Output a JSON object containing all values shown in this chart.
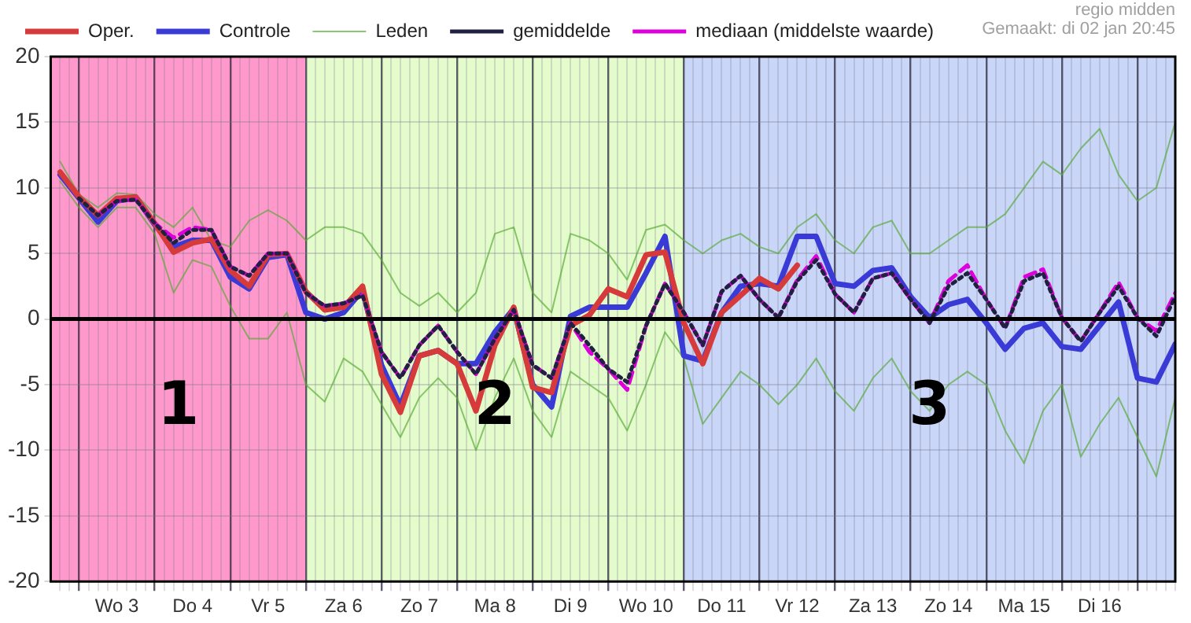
{
  "chart_data": {
    "type": "line",
    "annotations": [
      "regio midden",
      "Gemaakt: di 02 jan 20:45"
    ],
    "x": [
      "--01-02T18:00",
      "--01-03T00:00",
      "--01-03T06:00",
      "--01-03T12:00",
      "--01-03T18:00",
      "--01-04T00:00",
      "--01-04T06:00",
      "--01-04T12:00",
      "--01-04T18:00",
      "--01-05T00:00",
      "--01-05T06:00",
      "--01-05T12:00",
      "--01-05T18:00",
      "--01-06T00:00",
      "--01-06T06:00",
      "--01-06T12:00",
      "--01-06T18:00",
      "--01-07T00:00",
      "--01-07T06:00",
      "--01-07T12:00",
      "--01-07T18:00",
      "--01-08T00:00",
      "--01-08T06:00",
      "--01-08T12:00",
      "--01-08T18:00",
      "--01-09T00:00",
      "--01-09T06:00",
      "--01-09T12:00",
      "--01-09T18:00",
      "--01-10T00:00",
      "--01-10T06:00",
      "--01-10T12:00",
      "--01-10T18:00",
      "--01-11T00:00",
      "--01-11T06:00",
      "--01-11T12:00",
      "--01-11T18:00",
      "--01-12T00:00",
      "--01-12T06:00",
      "--01-12T12:00",
      "--01-12T18:00",
      "--01-13T00:00",
      "--01-13T06:00",
      "--01-13T12:00",
      "--01-13T18:00",
      "--01-14T00:00",
      "--01-14T06:00",
      "--01-14T12:00",
      "--01-14T18:00",
      "--01-15T00:00",
      "--01-15T06:00",
      "--01-15T12:00",
      "--01-15T18:00",
      "--01-16T00:00",
      "--01-16T06:00",
      "--01-16T12:00",
      "--01-16T18:00",
      "--01-17T00:00",
      "--01-17T06:00",
      "--01-17T12:00"
    ],
    "series": [
      {
        "name": "Oper.",
        "color": "#d63a3a",
        "line_style": "solid",
        "values": [
          11.2,
          9.3,
          7.9,
          9.2,
          9.3,
          7.3,
          5.1,
          5.8,
          6.1,
          3.7,
          2.5,
          4.9,
          5.0,
          2.1,
          0.7,
          0.9,
          2.5,
          -4.2,
          -7.1,
          -2.8,
          -2.4,
          -3.4,
          -7.0,
          -2.0,
          0.9,
          -5.2,
          -5.6,
          -0.5,
          0.3,
          2.3,
          1.7,
          4.9,
          5.1,
          -0.3,
          -3.4,
          0.5,
          1.8,
          3.1,
          2.3,
          4.1,
          null,
          null,
          null,
          null,
          null,
          null,
          null,
          null,
          null,
          null,
          null,
          null,
          null,
          null,
          null,
          null,
          null,
          null,
          null,
          null
        ]
      },
      {
        "name": "Controle",
        "color": "#3a3ad6",
        "line_style": "solid",
        "values": [
          11.0,
          9.2,
          7.4,
          9.0,
          9.3,
          7.2,
          5.5,
          6.0,
          6.0,
          3.2,
          2.3,
          4.7,
          4.9,
          0.5,
          0.0,
          0.5,
          2.2,
          -3.5,
          -6.6,
          -2.8,
          -2.4,
          -3.4,
          -3.4,
          -1.0,
          0.8,
          -5.0,
          -6.7,
          0.2,
          0.9,
          0.9,
          0.9,
          3.5,
          6.3,
          -2.8,
          -3.2,
          0.5,
          2.5,
          2.7,
          2.5,
          6.3,
          6.3,
          2.7,
          2.5,
          3.7,
          3.9,
          1.7,
          0.1,
          1.1,
          1.5,
          -0.3,
          -2.3,
          -0.7,
          -0.3,
          -2.1,
          -2.3,
          -0.5,
          1.3,
          -4.5,
          -4.8,
          -1.9
        ]
      },
      {
        "name": "Leden",
        "color": "#55aa33",
        "line_style": "solid",
        "values": [
          12,
          9.5,
          8.5,
          9.6,
          9.5,
          8,
          7,
          8.5,
          6,
          5.5,
          7.5,
          8.3,
          7.5,
          6,
          7,
          7,
          6.5,
          4.5,
          2,
          1,
          2,
          0.5,
          2,
          6.5,
          7,
          2,
          0.5,
          6.5,
          6,
          5,
          3,
          6.8,
          7.2,
          6,
          5,
          6,
          6.5,
          5.5,
          5,
          7,
          8,
          6,
          5,
          7,
          7.5,
          5,
          5,
          6,
          7,
          7,
          8,
          10,
          12,
          11,
          13,
          14.5,
          11,
          9,
          10,
          15
        ]
      },
      {
        "color": "#55aa33",
        "line_style": "solid",
        "values": [
          10.5,
          8.5,
          7,
          8.5,
          8.5,
          6.5,
          2,
          4.5,
          4,
          1,
          -1.5,
          -1.5,
          0.5,
          -5,
          -6.3,
          -3,
          -4,
          -6.5,
          -9,
          -6,
          -4.5,
          -6,
          -10,
          -6,
          -3,
          -7,
          -9,
          -4,
          -5,
          -6,
          -8.5,
          -5,
          -1,
          -3,
          -8,
          -6,
          -4,
          -5,
          -6.5,
          -5,
          -3,
          -5.5,
          -7,
          -4.5,
          -3,
          -5.5,
          -7,
          -5,
          -4,
          -5,
          -8.5,
          -11,
          -7,
          -5,
          -10.5,
          -8,
          -6,
          -9,
          -12,
          -6
        ]
      },
      {
        "name": "gemiddelde",
        "color": "#202040",
        "line_style": "dotted",
        "values": [
          null,
          9.2,
          7.9,
          9.0,
          9.1,
          7.3,
          5.8,
          6.8,
          6.8,
          4.0,
          3.3,
          5.0,
          5.0,
          2.0,
          1.0,
          1.2,
          1.8,
          -2.5,
          -4.5,
          -2.0,
          -0.5,
          -2.5,
          -4.2,
          -1.5,
          0.7,
          -3.5,
          -4.5,
          -0.3,
          -2.0,
          -3.8,
          -4.8,
          -0.5,
          2.7,
          0.5,
          -2.0,
          2.1,
          3.3,
          1.5,
          0.1,
          2.9,
          4.5,
          1.9,
          0.5,
          3.1,
          3.5,
          1.5,
          -0.3,
          2.5,
          3.5,
          1.5,
          -0.7,
          2.9,
          3.5,
          0.1,
          -1.7,
          0.5,
          2.5,
          0.1,
          -1.3,
          1.7
        ]
      },
      {
        "name": "mediaan (middelste waarde)",
        "color": "#dd00dd",
        "line_style": "dashed",
        "values": [
          null,
          null,
          7.9,
          9.0,
          9.1,
          7.3,
          6.2,
          7.0,
          6.8,
          4.0,
          3.3,
          5.0,
          5.0,
          2.0,
          1.0,
          1.2,
          1.8,
          -2.5,
          -4.5,
          -2.0,
          -0.5,
          -2.5,
          -4.2,
          -1.5,
          0.7,
          -3.5,
          -4.5,
          -0.3,
          -2.5,
          -3.8,
          -5.4,
          -0.5,
          2.7,
          0.5,
          -2.0,
          2.1,
          3.3,
          1.5,
          0.1,
          3.0,
          4.8,
          1.9,
          0.5,
          3.1,
          3.5,
          1.5,
          -0.3,
          2.9,
          4.1,
          1.5,
          -0.7,
          3.2,
          3.8,
          0.1,
          -1.7,
          0.5,
          2.8,
          0.1,
          -0.9,
          2.0
        ]
      }
    ],
    "xlim": [
      "--01-02T15:00",
      "--01-17T12:00"
    ],
    "xticks": [
      {
        "value": "--01-02T18:00",
        "label": null
      },
      {
        "value": "--01-02T21:00",
        "label": null
      },
      {
        "value": "--01-03T00:00",
        "label": null
      },
      {
        "value": "--01-03T03:00",
        "label": null
      },
      {
        "value": "--01-03T06:00",
        "label": null
      },
      {
        "value": "--01-03T09:00",
        "label": null
      },
      {
        "value": "--01-03T12:00",
        "label": "Wo 3"
      },
      {
        "value": "--01-03T15:00",
        "label": null
      },
      {
        "value": "--01-03T18:00",
        "label": null
      },
      {
        "value": "--01-03T21:00",
        "label": null
      },
      {
        "value": "--01-04T00:00",
        "label": null
      },
      {
        "value": "--01-04T03:00",
        "label": null
      },
      {
        "value": "--01-04T06:00",
        "label": null
      },
      {
        "value": "--01-04T09:00",
        "label": null
      },
      {
        "value": "--01-04T12:00",
        "label": "Do 4"
      },
      {
        "value": "--01-04T15:00",
        "label": null
      },
      {
        "value": "--01-04T18:00",
        "label": null
      },
      {
        "value": "--01-04T21:00",
        "label": null
      },
      {
        "value": "--01-05T00:00",
        "label": null
      },
      {
        "value": "--01-05T03:00",
        "label": null
      },
      {
        "value": "--01-05T06:00",
        "label": null
      },
      {
        "value": "--01-05T09:00",
        "label": null
      },
      {
        "value": "--01-05T12:00",
        "label": "Vr 5"
      },
      {
        "value": "--01-05T15:00",
        "label": null
      },
      {
        "value": "--01-05T18:00",
        "label": null
      },
      {
        "value": "--01-05T21:00",
        "label": null
      },
      {
        "value": "--01-06T00:00",
        "label": null
      },
      {
        "value": "--01-06T03:00",
        "label": null
      },
      {
        "value": "--01-06T06:00",
        "label": null
      },
      {
        "value": "--01-06T09:00",
        "label": null
      },
      {
        "value": "--01-06T12:00",
        "label": "Za 6"
      },
      {
        "value": "--01-06T15:00",
        "label": null
      },
      {
        "value": "--01-06T18:00",
        "label": null
      },
      {
        "value": "--01-06T21:00",
        "label": null
      },
      {
        "value": "--01-07T00:00",
        "label": null
      },
      {
        "value": "--01-07T03:00",
        "label": null
      },
      {
        "value": "--01-07T06:00",
        "label": null
      },
      {
        "value": "--01-07T09:00",
        "label": null
      },
      {
        "value": "--01-07T12:00",
        "label": "Zo 7"
      },
      {
        "value": "--01-07T15:00",
        "label": null
      },
      {
        "value": "--01-07T18:00",
        "label": null
      },
      {
        "value": "--01-07T21:00",
        "label": null
      },
      {
        "value": "--01-08T00:00",
        "label": null
      },
      {
        "value": "--01-08T03:00",
        "label": null
      },
      {
        "value": "--01-08T06:00",
        "label": null
      },
      {
        "value": "--01-08T09:00",
        "label": null
      },
      {
        "value": "--01-08T12:00",
        "label": "Ma 8"
      },
      {
        "value": "--01-08T15:00",
        "label": null
      },
      {
        "value": "--01-08T18:00",
        "label": null
      },
      {
        "value": "--01-08T21:00",
        "label": null
      },
      {
        "value": "--01-09T00:00",
        "label": null
      },
      {
        "value": "--01-09T03:00",
        "label": null
      },
      {
        "value": "--01-09T06:00",
        "label": null
      },
      {
        "value": "--01-09T09:00",
        "label": null
      },
      {
        "value": "--01-09T12:00",
        "label": "Di 9"
      },
      {
        "value": "--01-09T15:00",
        "label": null
      },
      {
        "value": "--01-09T18:00",
        "label": null
      },
      {
        "value": "--01-09T21:00",
        "label": null
      },
      {
        "value": "--01-10T00:00",
        "label": null
      },
      {
        "value": "--01-10T03:00",
        "label": null
      },
      {
        "value": "--01-10T06:00",
        "label": null
      },
      {
        "value": "--01-10T09:00",
        "label": null
      },
      {
        "value": "--01-10T12:00",
        "label": "Wo 10"
      },
      {
        "value": "--01-10T15:00",
        "label": null
      },
      {
        "value": "--01-10T18:00",
        "label": null
      },
      {
        "value": "--01-10T21:00",
        "label": null
      },
      {
        "value": "--01-11T00:00",
        "label": null
      },
      {
        "value": "--01-11T03:00",
        "label": null
      },
      {
        "value": "--01-11T06:00",
        "label": null
      },
      {
        "value": "--01-11T09:00",
        "label": null
      },
      {
        "value": "--01-11T12:00",
        "label": "Do 11"
      },
      {
        "value": "--01-11T15:00",
        "label": null
      },
      {
        "value": "--01-11T18:00",
        "label": null
      },
      {
        "value": "--01-11T21:00",
        "label": null
      },
      {
        "value": "--01-12T00:00",
        "label": null
      },
      {
        "value": "--01-12T03:00",
        "label": null
      },
      {
        "value": "--01-12T06:00",
        "label": null
      },
      {
        "value": "--01-12T09:00",
        "label": null
      },
      {
        "value": "--01-12T12:00",
        "label": "Vr 12"
      },
      {
        "value": "--01-12T15:00",
        "label": null
      },
      {
        "value": "--01-12T18:00",
        "label": null
      },
      {
        "value": "--01-12T21:00",
        "label": null
      },
      {
        "value": "--01-13T00:00",
        "label": null
      },
      {
        "value": "--01-13T03:00",
        "label": null
      },
      {
        "value": "--01-13T06:00",
        "label": null
      },
      {
        "value": "--01-13T09:00",
        "label": null
      },
      {
        "value": "--01-13T12:00",
        "label": "Za 13"
      },
      {
        "value": "--01-13T15:00",
        "label": null
      },
      {
        "value": "--01-13T18:00",
        "label": null
      },
      {
        "value": "--01-13T21:00",
        "label": null
      },
      {
        "value": "--01-14T00:00",
        "label": null
      },
      {
        "value": "--01-14T03:00",
        "label": null
      },
      {
        "value": "--01-14T06:00",
        "label": null
      },
      {
        "value": "--01-14T09:00",
        "label": null
      },
      {
        "value": "--01-14T12:00",
        "label": "Zo 14"
      },
      {
        "value": "--01-14T15:00",
        "label": null
      },
      {
        "value": "--01-14T18:00",
        "label": null
      },
      {
        "value": "--01-14T21:00",
        "label": null
      },
      {
        "value": "--01-15T00:00",
        "label": null
      },
      {
        "value": "--01-15T03:00",
        "label": null
      },
      {
        "value": "--01-15T06:00",
        "label": null
      },
      {
        "value": "--01-15T09:00",
        "label": null
      },
      {
        "value": "--01-15T12:00",
        "label": "Ma 15"
      },
      {
        "value": "--01-15T15:00",
        "label": null
      },
      {
        "value": "--01-15T18:00",
        "label": null
      },
      {
        "value": "--01-15T21:00",
        "label": null
      },
      {
        "value": "--01-16T00:00",
        "label": null
      },
      {
        "value": "--01-16T03:00",
        "label": null
      },
      {
        "value": "--01-16T06:00",
        "label": null
      },
      {
        "value": "--01-16T09:00",
        "label": null
      },
      {
        "value": "--01-16T12:00",
        "label": "Di 16"
      },
      {
        "value": "--01-16T15:00",
        "label": null
      },
      {
        "value": "--01-16T18:00",
        "label": null
      },
      {
        "value": "--01-16T21:00",
        "label": null
      },
      {
        "value": "--01-17T00:00",
        "label": null
      },
      {
        "value": "--01-17T03:00",
        "label": null
      },
      {
        "value": "--01-17T06:00",
        "label": null
      },
      {
        "value": "--01-17T09:00",
        "label": null
      },
      {
        "value": "--01-17T12:00",
        "label": null
      }
    ],
    "ylim": [
      -20,
      20
    ],
    "yticks": [
      -20,
      -15,
      -10,
      -5,
      0,
      5,
      10,
      15,
      20
    ],
    "bands": [
      {
        "axis": "x",
        "from": "--01-02T15:00",
        "to": "--01-06T00:00",
        "label": "1",
        "color": "#ff99cc"
      },
      {
        "axis": "x",
        "from": "--01-06T00:00",
        "to": "--01-11T00:00",
        "label": "2",
        "color": "#e4fccc"
      },
      {
        "axis": "x",
        "from": "--01-11T00:00",
        "to": "--01-17T12:00",
        "label": "3",
        "color": "#c9d6f8"
      }
    ],
    "ref_lines": [
      {
        "axis": "y",
        "value": 0,
        "color": "#000000"
      }
    ],
    "grid": true,
    "legend": "top",
    "marker": "none"
  }
}
